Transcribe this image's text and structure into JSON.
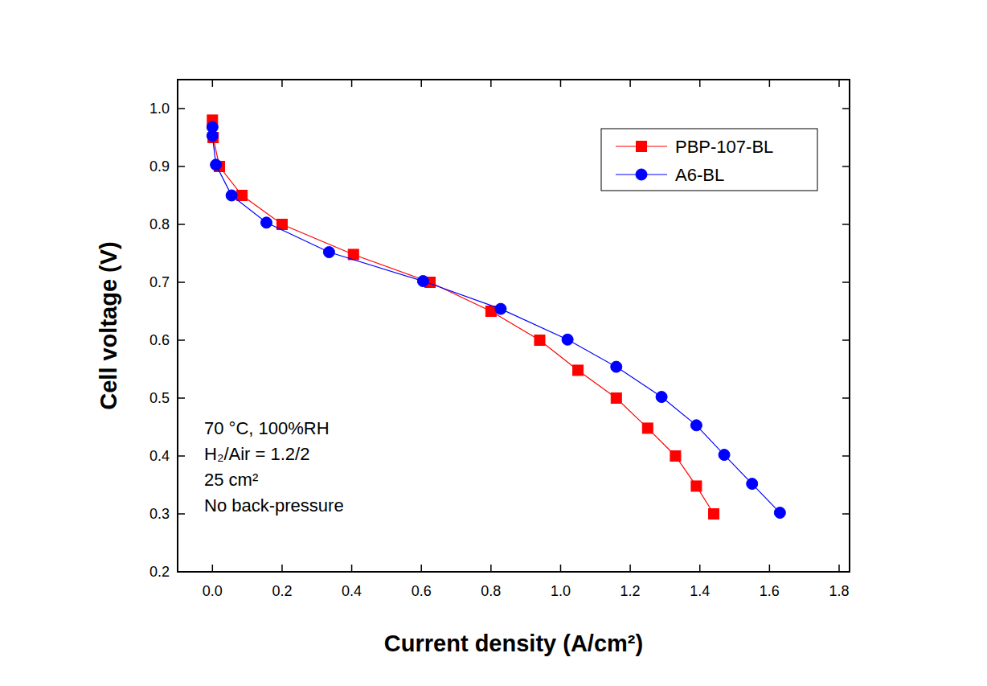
{
  "chart_data": {
    "type": "line",
    "x_label": "Current density (A/cm²)",
    "y_label": "Cell voltage (V)",
    "annotations": [
      "70 °C, 100%RH",
      "H₂/Air = 1.2/2",
      "25 cm²",
      "No back-pressure"
    ],
    "xlim": [
      -0.1,
      1.83
    ],
    "ylim": [
      0.2,
      1.05
    ],
    "xticks": [
      {
        "value": 0.0,
        "label": "0.0"
      },
      0.2,
      0.4,
      0.6,
      0.8,
      {
        "value": 1.0,
        "label": "1.0"
      },
      1.2,
      1.4,
      1.6,
      1.8
    ],
    "yticks": [
      0.2,
      0.3,
      0.4,
      0.5,
      0.6,
      0.7,
      0.8,
      0.9,
      {
        "value": 1.0,
        "label": "1.0"
      }
    ],
    "grid": false,
    "legend": "top-right",
    "series": [
      {
        "name": "PBP-107-BL",
        "color": "#ff0000",
        "marker": "square",
        "line_style": "solid",
        "x": [
          0.0,
          0.002,
          0.02,
          0.085,
          0.2,
          0.405,
          0.625,
          0.8,
          0.94,
          1.05,
          1.16,
          1.25,
          1.33,
          1.39,
          1.44
        ],
        "values": [
          0.98,
          0.95,
          0.9,
          0.85,
          0.8,
          0.748,
          0.7,
          0.65,
          0.6,
          0.548,
          0.5,
          0.448,
          0.4,
          0.348,
          0.3
        ]
      },
      {
        "name": "A6-BL",
        "color": "#0000ff",
        "marker": "circle",
        "line_style": "solid",
        "x": [
          0.0,
          0.0,
          0.01,
          0.055,
          0.155,
          0.335,
          0.605,
          0.828,
          1.02,
          1.16,
          1.29,
          1.39,
          1.47,
          1.55,
          1.63
        ],
        "values": [
          0.968,
          0.953,
          0.903,
          0.85,
          0.803,
          0.752,
          0.702,
          0.654,
          0.601,
          0.554,
          0.502,
          0.453,
          0.402,
          0.352,
          0.302
        ]
      }
    ]
  }
}
